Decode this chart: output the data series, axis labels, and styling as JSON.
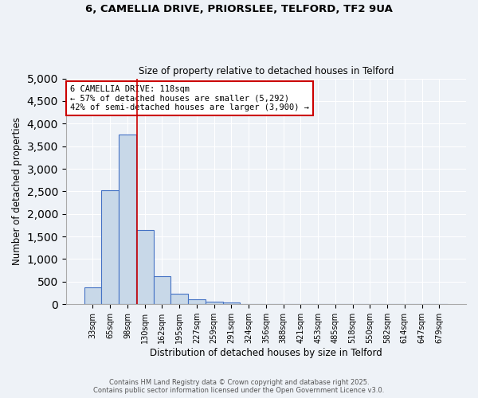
{
  "title1": "6, CAMELLIA DRIVE, PRIORSLEE, TELFORD, TF2 9UA",
  "title2": "Size of property relative to detached houses in Telford",
  "xlabel": "Distribution of detached houses by size in Telford",
  "ylabel": "Number of detached properties",
  "bin_labels": [
    "33sqm",
    "65sqm",
    "98sqm",
    "130sqm",
    "162sqm",
    "195sqm",
    "227sqm",
    "259sqm",
    "291sqm",
    "324sqm",
    "356sqm",
    "388sqm",
    "421sqm",
    "453sqm",
    "485sqm",
    "518sqm",
    "550sqm",
    "582sqm",
    "614sqm",
    "647sqm",
    "679sqm"
  ],
  "bar_values": [
    380,
    2530,
    3750,
    1650,
    620,
    240,
    110,
    50,
    40,
    0,
    0,
    0,
    0,
    0,
    0,
    0,
    0,
    0,
    0,
    0,
    0
  ],
  "bar_color": "#c8d8e8",
  "bar_edge_color": "#4472c4",
  "ylim": [
    0,
    5000
  ],
  "yticks": [
    0,
    500,
    1000,
    1500,
    2000,
    2500,
    3000,
    3500,
    4000,
    4500,
    5000
  ],
  "vline_x": 2.545,
  "vline_color": "#cc0000",
  "annotation_line1": "6 CAMELLIA DRIVE: 118sqm",
  "annotation_line2": "← 57% of detached houses are smaller (5,292)",
  "annotation_line3": "42% of semi-detached houses are larger (3,900) →",
  "annotation_box_color": "#cc0000",
  "footer1": "Contains HM Land Registry data © Crown copyright and database right 2025.",
  "footer2": "Contains public sector information licensed under the Open Government Licence v3.0.",
  "bg_color": "#eef2f7",
  "plot_bg_color": "#eef2f7",
  "grid_color": "#ffffff"
}
